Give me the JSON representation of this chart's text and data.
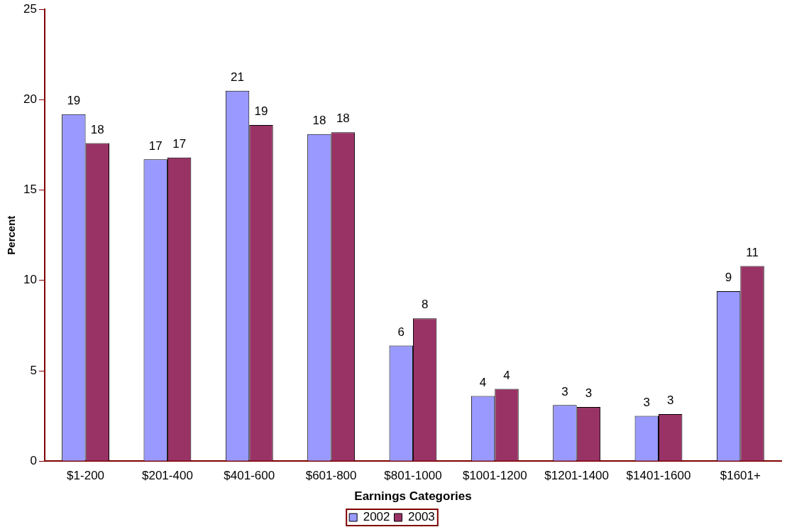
{
  "chart_data": {
    "type": "bar",
    "xlabel": "Earnings Categories",
    "ylabel": "Percent",
    "categories": [
      "$1-200",
      "$201-400",
      "$401-600",
      "$601-800",
      "$801-1000",
      "$1001-1200",
      "$1201-1400",
      "$1401-1600",
      "$1601+"
    ],
    "series": [
      {
        "name": "2002",
        "color": "#9999ff",
        "values": [
          19.2,
          16.7,
          20.5,
          18.1,
          6.4,
          3.6,
          3.1,
          2.5,
          9.4
        ],
        "value_labels": [
          "19",
          "17",
          "21",
          "18",
          "6",
          "4",
          "3",
          "3",
          "9"
        ]
      },
      {
        "name": "2003",
        "color": "#993366",
        "values": [
          17.6,
          16.8,
          18.6,
          18.2,
          7.9,
          4.0,
          3.0,
          2.6,
          10.8
        ],
        "value_labels": [
          "18",
          "17",
          "19",
          "18",
          "8",
          "4",
          "3",
          "3",
          "11"
        ]
      }
    ],
    "ylim": [
      0,
      25
    ],
    "yticks": [
      0,
      5,
      10,
      15,
      20,
      25
    ],
    "grid": false,
    "legend": "bottom"
  }
}
